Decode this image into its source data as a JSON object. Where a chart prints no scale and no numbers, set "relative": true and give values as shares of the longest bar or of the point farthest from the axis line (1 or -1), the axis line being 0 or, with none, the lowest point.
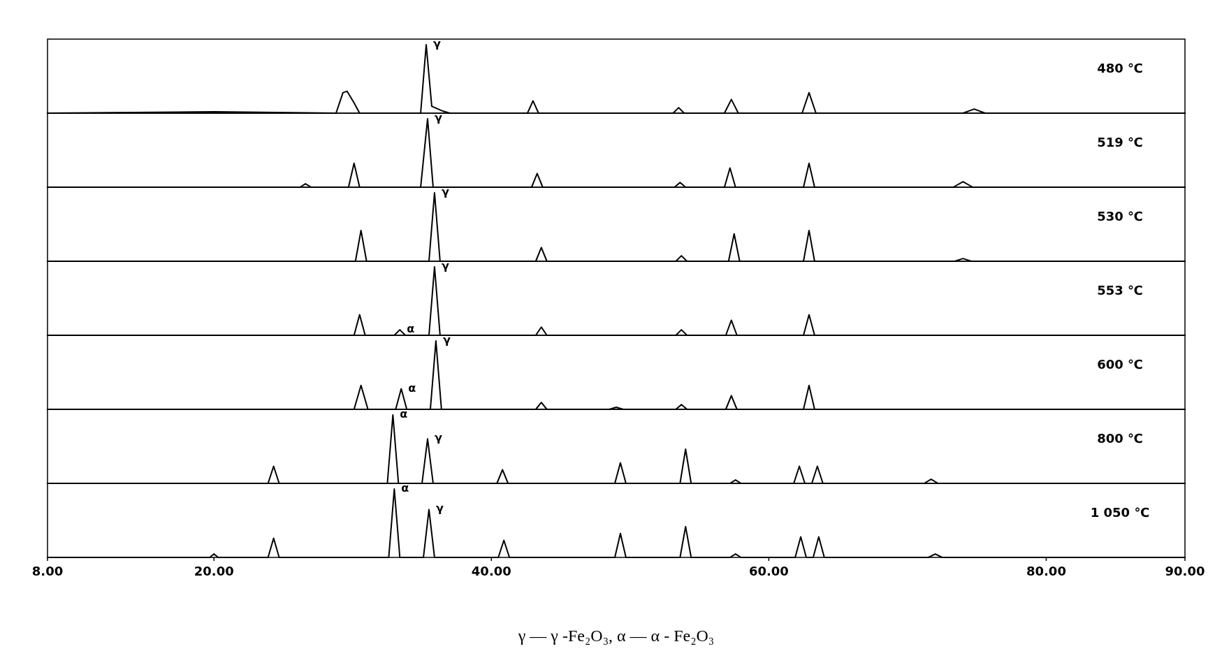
{
  "chart_data": [
    {
      "type": "line",
      "relative": true,
      "xlim": [
        8,
        90
      ],
      "tick_labels": false,
      "series": [
        {
          "color": "#000000",
          "x": [
            8,
            20,
            28.8,
            29.3,
            29.6,
            30.1,
            30.5,
            34.9,
            35.3,
            35.7,
            36.5,
            37,
            42.6,
            43,
            43.4,
            53.1,
            53.5,
            53.9,
            56.8,
            57.3,
            57.8,
            62.4,
            62.9,
            63.4,
            74,
            74.8,
            75.6,
            90
          ],
          "values": [
            0,
            0.02,
            0,
            0.3,
            0.32,
            0.15,
            0,
            0,
            1,
            0.1,
            0.03,
            0,
            0,
            0.18,
            0,
            0,
            0.08,
            0,
            0,
            0.2,
            0,
            0,
            0.3,
            0,
            0,
            0.06,
            0,
            0
          ]
        }
      ],
      "annotations": [
        "480 ℃",
        {
          "text": "γ",
          "x": 35.3,
          "y": 1
        }
      ]
    },
    {
      "type": "line",
      "relative": true,
      "xlim": [
        8,
        90
      ],
      "tick_labels": false,
      "series": [
        {
          "color": "#000000",
          "x": [
            8,
            26.2,
            26.6,
            27,
            29.7,
            30.1,
            30.5,
            34.9,
            35.4,
            35.8,
            42.9,
            43.3,
            43.7,
            53.2,
            53.6,
            54,
            56.8,
            57.2,
            57.6,
            62.5,
            62.9,
            63.3,
            73.3,
            74,
            74.7,
            90
          ],
          "values": [
            0,
            0,
            0.05,
            0,
            0,
            0.35,
            0,
            0,
            1,
            0,
            0,
            0.2,
            0,
            0,
            0.07,
            0,
            0,
            0.28,
            0,
            0,
            0.35,
            0,
            0,
            0.08,
            0,
            0
          ]
        }
      ],
      "annotations": [
        "519 ℃",
        {
          "text": "γ",
          "x": 35.4,
          "y": 1
        }
      ]
    },
    {
      "type": "line",
      "relative": true,
      "xlim": [
        8,
        90
      ],
      "tick_labels": false,
      "series": [
        {
          "color": "#000000",
          "x": [
            8,
            30.2,
            30.6,
            31,
            35.5,
            35.9,
            36.3,
            43.2,
            43.6,
            44,
            53.3,
            53.7,
            54.1,
            57.1,
            57.5,
            57.9,
            62.5,
            62.9,
            63.3,
            73.4,
            74,
            74.6,
            90
          ],
          "values": [
            0,
            0,
            0.45,
            0,
            0,
            1,
            0,
            0,
            0.2,
            0,
            0,
            0.08,
            0,
            0,
            0.4,
            0,
            0,
            0.45,
            0,
            0,
            0.04,
            0,
            0
          ]
        }
      ],
      "annotations": [
        "530 ℃",
        {
          "text": "γ",
          "x": 35.9,
          "y": 1
        }
      ]
    },
    {
      "type": "line",
      "relative": true,
      "xlim": [
        8,
        90
      ],
      "tick_labels": false,
      "series": [
        {
          "color": "#000000",
          "x": [
            8,
            30.1,
            30.5,
            30.9,
            33,
            33.4,
            33.8,
            35.5,
            35.9,
            36.3,
            43.2,
            43.6,
            44,
            53.3,
            53.7,
            54.1,
            56.9,
            57.3,
            57.7,
            62.5,
            62.9,
            63.3,
            90
          ],
          "values": [
            0,
            0,
            0.3,
            0,
            0,
            0.08,
            0,
            0,
            1,
            0,
            0,
            0.12,
            0,
            0,
            0.08,
            0,
            0,
            0.22,
            0,
            0,
            0.3,
            0,
            0
          ]
        }
      ],
      "annotations": [
        "553 ℃",
        {
          "text": "γ",
          "x": 35.9,
          "y": 1
        },
        {
          "text": "α",
          "x": 33.4,
          "y": 0.08
        }
      ]
    },
    {
      "type": "line",
      "relative": true,
      "xlim": [
        8,
        90
      ],
      "tick_labels": false,
      "series": [
        {
          "color": "#000000",
          "x": [
            8,
            30.1,
            30.6,
            31.1,
            33.1,
            33.5,
            33.9,
            35.6,
            36,
            36.4,
            43.2,
            43.6,
            44,
            48.5,
            49,
            49.5,
            53.3,
            53.7,
            54.1,
            56.9,
            57.3,
            57.7,
            62.5,
            62.9,
            63.3,
            90
          ],
          "values": [
            0,
            0,
            0.35,
            0,
            0,
            0.3,
            0,
            0,
            1,
            0,
            0,
            0.1,
            0,
            0,
            0.03,
            0,
            0,
            0.07,
            0,
            0,
            0.2,
            0,
            0,
            0.35,
            0,
            0
          ]
        }
      ],
      "annotations": [
        "600 ℃",
        {
          "text": "γ",
          "x": 36,
          "y": 1
        },
        {
          "text": "α",
          "x": 33.5,
          "y": 0.3
        }
      ]
    },
    {
      "type": "line",
      "relative": true,
      "xlim": [
        8,
        90
      ],
      "tick_labels": false,
      "series": [
        {
          "color": "#000000",
          "x": [
            8,
            23.9,
            24.3,
            24.7,
            32.5,
            32.9,
            33.3,
            35,
            35.4,
            35.8,
            40.4,
            40.8,
            41.2,
            48.9,
            49.3,
            49.7,
            53.6,
            54,
            54.4,
            57.2,
            57.6,
            58,
            61.8,
            62.2,
            62.6,
            63.1,
            63.5,
            63.9,
            71.2,
            71.7,
            72.2,
            90
          ],
          "values": [
            0,
            0,
            0.25,
            0,
            0,
            1,
            0,
            0,
            0.65,
            0,
            0,
            0.2,
            0,
            0,
            0.3,
            0,
            0,
            0.5,
            0,
            0,
            0.05,
            0,
            0,
            0.25,
            0,
            0,
            0.25,
            0,
            0,
            0.06,
            0,
            0
          ]
        }
      ],
      "annotations": [
        "800 ℃",
        {
          "text": "α",
          "x": 32.9,
          "y": 1
        },
        {
          "text": "γ",
          "x": 35.4,
          "y": 0.65
        }
      ]
    },
    {
      "type": "line",
      "relative": true,
      "xlim": [
        8,
        90
      ],
      "xticks": [
        {
          "value": 8,
          "label": "8.00"
        },
        {
          "value": 20,
          "label": "20.00"
        },
        {
          "value": 40,
          "label": "40.00"
        },
        {
          "value": 60,
          "label": "60.00"
        },
        {
          "value": 80,
          "label": "80.00"
        },
        {
          "value": 90,
          "label": "90.00"
        }
      ],
      "tick_labels": "x",
      "series": [
        {
          "color": "#000000",
          "x": [
            8,
            19.7,
            20,
            20.3,
            23.9,
            24.3,
            24.7,
            32.6,
            33,
            33.4,
            35.1,
            35.5,
            35.9,
            40.5,
            40.9,
            41.3,
            48.9,
            49.3,
            49.7,
            53.6,
            54,
            54.4,
            57.2,
            57.6,
            58,
            61.9,
            62.3,
            62.7,
            63.2,
            63.6,
            64,
            71.5,
            72,
            72.5,
            90
          ],
          "values": [
            0,
            0,
            0.05,
            0,
            0,
            0.28,
            0,
            0,
            1,
            0,
            0,
            0.7,
            0,
            0,
            0.25,
            0,
            0,
            0.35,
            0,
            0,
            0.45,
            0,
            0,
            0.05,
            0,
            0,
            0.3,
            0,
            0,
            0.3,
            0,
            0,
            0.05,
            0,
            0
          ]
        }
      ],
      "annotations": [
        "1 050 ℃",
        {
          "text": "α",
          "x": 33,
          "y": 1
        },
        {
          "text": "γ",
          "x": 35.5,
          "y": 0.7
        },
        "γ — γ -Fe₂O₃,   α — α - Fe₂O₃"
      ]
    }
  ]
}
